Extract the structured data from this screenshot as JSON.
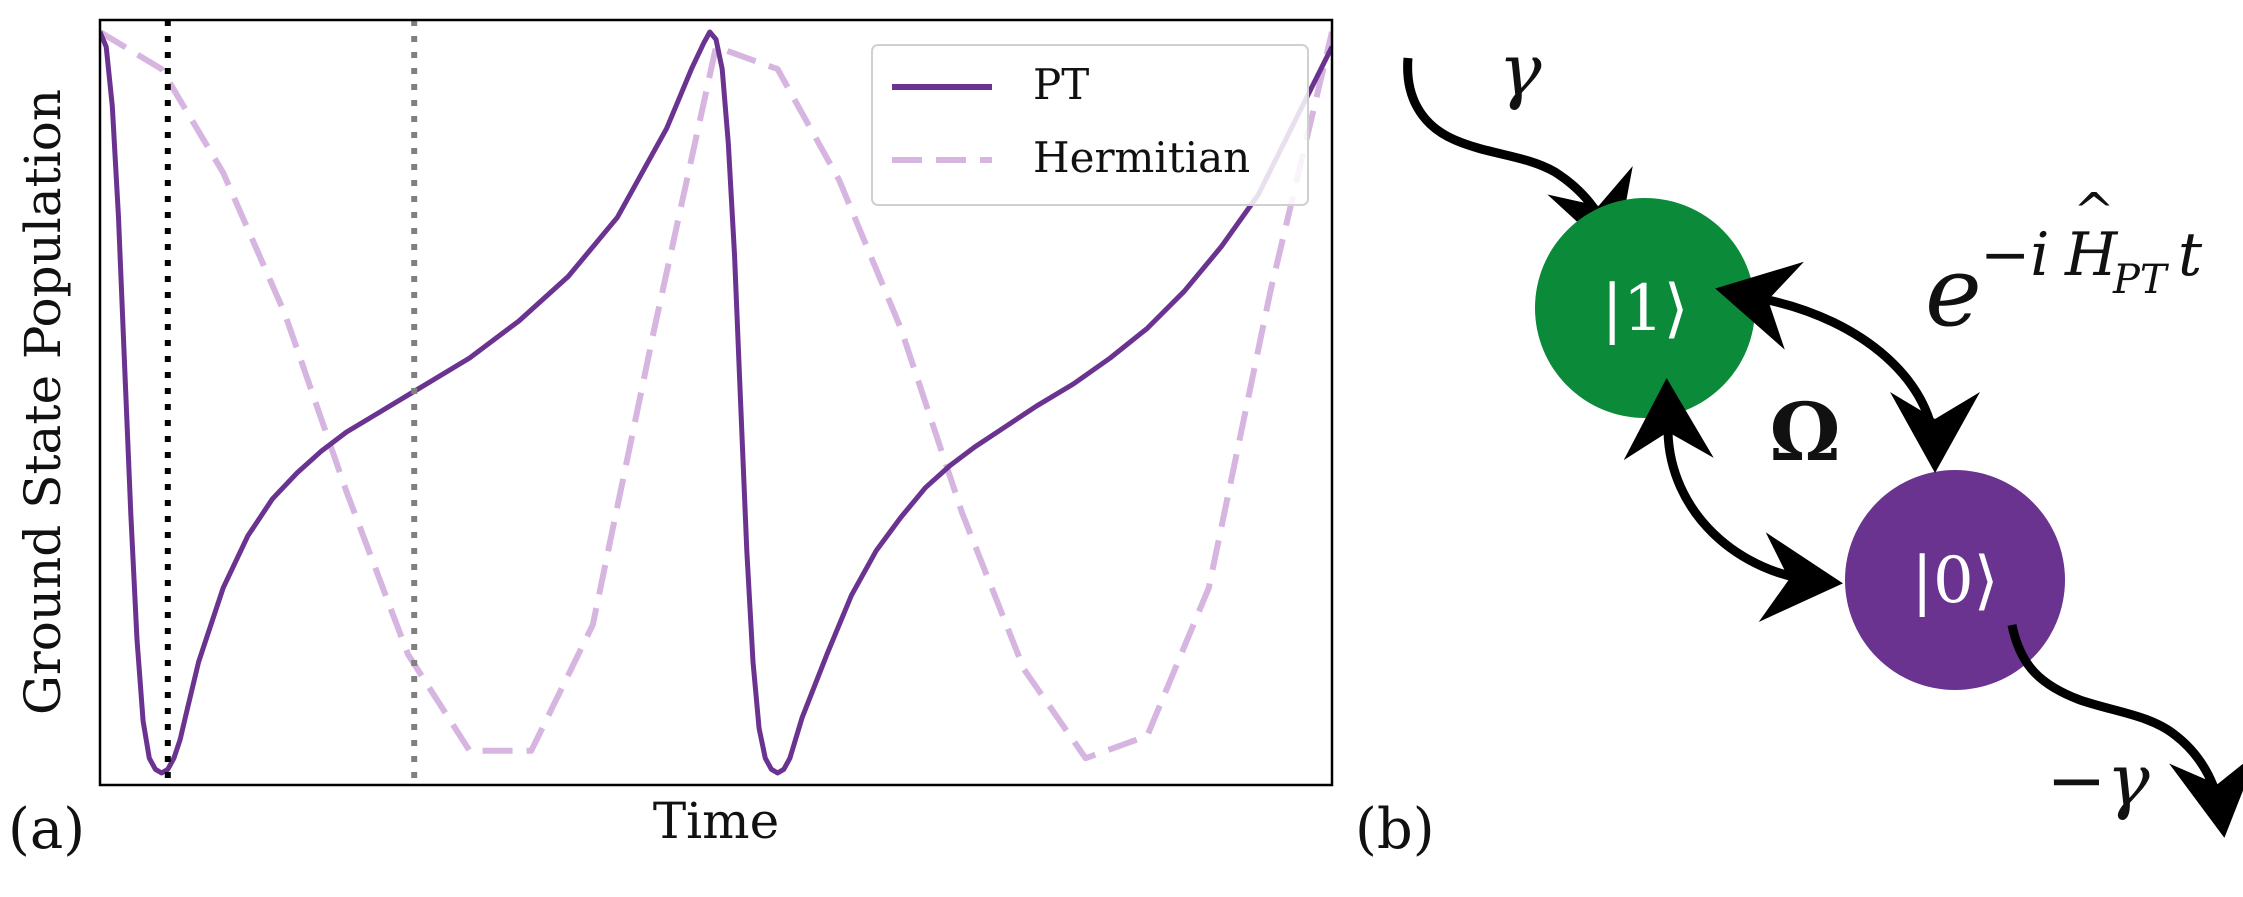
{
  "figure": {
    "panel_a_label": "(a)",
    "panel_b_label": "(b)"
  },
  "chart_data": {
    "type": "line",
    "xlabel": "Time",
    "ylabel": "Ground State Population",
    "xlim": [
      0,
      1
    ],
    "ylim": [
      0,
      1
    ],
    "grid": false,
    "axis_ticks_shown": false,
    "legend_position": "top-right",
    "colors": {
      "pt": "#6a3390",
      "hermitian": "#d6b6e0",
      "vline_black": "#000000",
      "vline_gray": "#808080"
    },
    "series": [
      {
        "name": "PT",
        "style": "solid",
        "x": [
          0.0,
          0.005,
          0.01,
          0.015,
          0.02,
          0.025,
          0.03,
          0.035,
          0.04,
          0.045,
          0.05,
          0.055,
          0.06,
          0.065,
          0.07,
          0.08,
          0.1,
          0.12,
          0.14,
          0.16,
          0.18,
          0.2,
          0.23,
          0.26,
          0.3,
          0.34,
          0.38,
          0.42,
          0.46,
          0.48,
          0.49,
          0.495,
          0.5,
          0.505,
          0.51,
          0.515,
          0.52,
          0.525,
          0.53,
          0.535,
          0.54,
          0.545,
          0.55,
          0.555,
          0.56,
          0.57,
          0.59,
          0.61,
          0.63,
          0.65,
          0.67,
          0.69,
          0.71,
          0.73,
          0.76,
          0.79,
          0.82,
          0.85,
          0.88,
          0.91,
          0.94,
          0.97,
          1.0
        ],
        "y": [
          1.0,
          0.98,
          0.9,
          0.75,
          0.55,
          0.35,
          0.18,
          0.07,
          0.02,
          0.005,
          0.0,
          0.005,
          0.02,
          0.045,
          0.08,
          0.15,
          0.25,
          0.32,
          0.37,
          0.405,
          0.435,
          0.46,
          0.49,
          0.52,
          0.56,
          0.61,
          0.67,
          0.75,
          0.87,
          0.95,
          0.985,
          1.0,
          0.99,
          0.95,
          0.85,
          0.7,
          0.5,
          0.3,
          0.15,
          0.06,
          0.02,
          0.005,
          0.0,
          0.005,
          0.02,
          0.075,
          0.16,
          0.24,
          0.3,
          0.345,
          0.385,
          0.415,
          0.44,
          0.462,
          0.495,
          0.525,
          0.56,
          0.6,
          0.65,
          0.71,
          0.78,
          0.88,
          0.98
        ]
      },
      {
        "name": "Hermitian",
        "style": "dashed",
        "x": [
          0.0,
          0.05,
          0.1,
          0.15,
          0.2,
          0.25,
          0.3,
          0.35,
          0.4,
          0.45,
          0.5,
          0.55,
          0.6,
          0.65,
          0.7,
          0.75,
          0.8,
          0.85,
          0.9,
          0.95,
          1.0
        ],
        "y": [
          1.0,
          0.95,
          0.81,
          0.62,
          0.38,
          0.16,
          0.03,
          0.03,
          0.2,
          0.6,
          0.98,
          0.95,
          0.8,
          0.6,
          0.35,
          0.14,
          0.02,
          0.05,
          0.25,
          0.65,
          1.0
        ]
      }
    ],
    "vlines": [
      {
        "x": 0.055,
        "color": "#000000",
        "style": "dotted"
      },
      {
        "x": 0.255,
        "color": "#808080",
        "style": "dotted"
      }
    ]
  },
  "diagram": {
    "state_1_label": "|1⟩",
    "state_0_label": "|0⟩",
    "state_1_color": "#0b8a3a",
    "state_0_color": "#6a3390",
    "gain_label": "γ",
    "loss_label": "−γ",
    "coupling_label": "Ω",
    "evolution_label": {
      "base": "e",
      "sup_prefix": "−i",
      "operator": "H",
      "hat": "^",
      "sub": "PT",
      "suffix": "t"
    }
  }
}
